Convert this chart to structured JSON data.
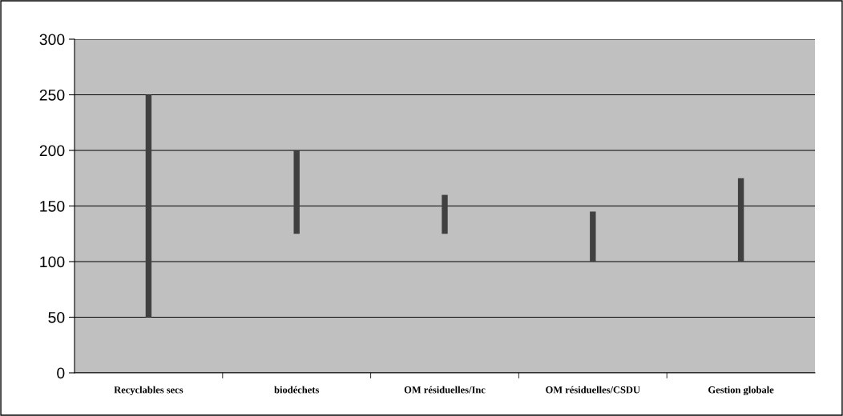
{
  "chart_data": {
    "type": "bar",
    "categories": [
      "Recyclables secs",
      "biodéchets",
      "OM résiduelles/Inc",
      "OM résiduelles/CSDU",
      "Gestion globale"
    ],
    "base": [
      50,
      125,
      125,
      100,
      100
    ],
    "values": [
      200,
      75,
      35,
      45,
      75
    ],
    "color": "#404040",
    "ylim": [
      0,
      300
    ],
    "yticks": [
      0,
      50,
      100,
      150,
      200,
      250,
      300
    ],
    "grid": "y",
    "legend": false
  }
}
